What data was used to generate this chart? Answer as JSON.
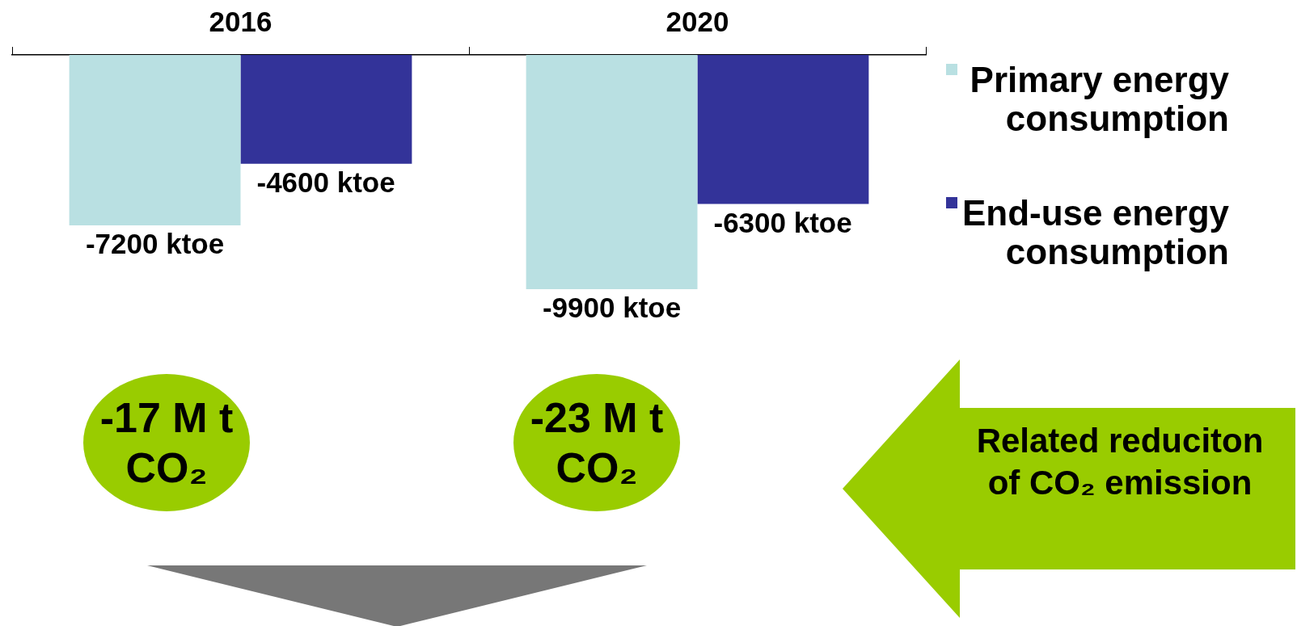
{
  "chart_data": {
    "type": "bar",
    "categories": [
      "2016",
      "2020"
    ],
    "series": [
      {
        "name": "Primary energy consumption",
        "color": "#b9e0e2",
        "values": [
          -7200,
          -9900
        ],
        "value_labels": [
          "-7200 ktoe",
          "-9900 ktoe"
        ]
      },
      {
        "name": "End-use energy consumption",
        "color": "#333399",
        "values": [
          -4600,
          -6300
        ],
        "value_labels": [
          "-4600 ktoe",
          "-6300 ktoe"
        ]
      }
    ],
    "legend": "right",
    "grid": false,
    "annotations": [
      "-17 M t CO₂",
      "-23 M t CO₂",
      "Related reduciton of CO₂ emission"
    ]
  }
}
